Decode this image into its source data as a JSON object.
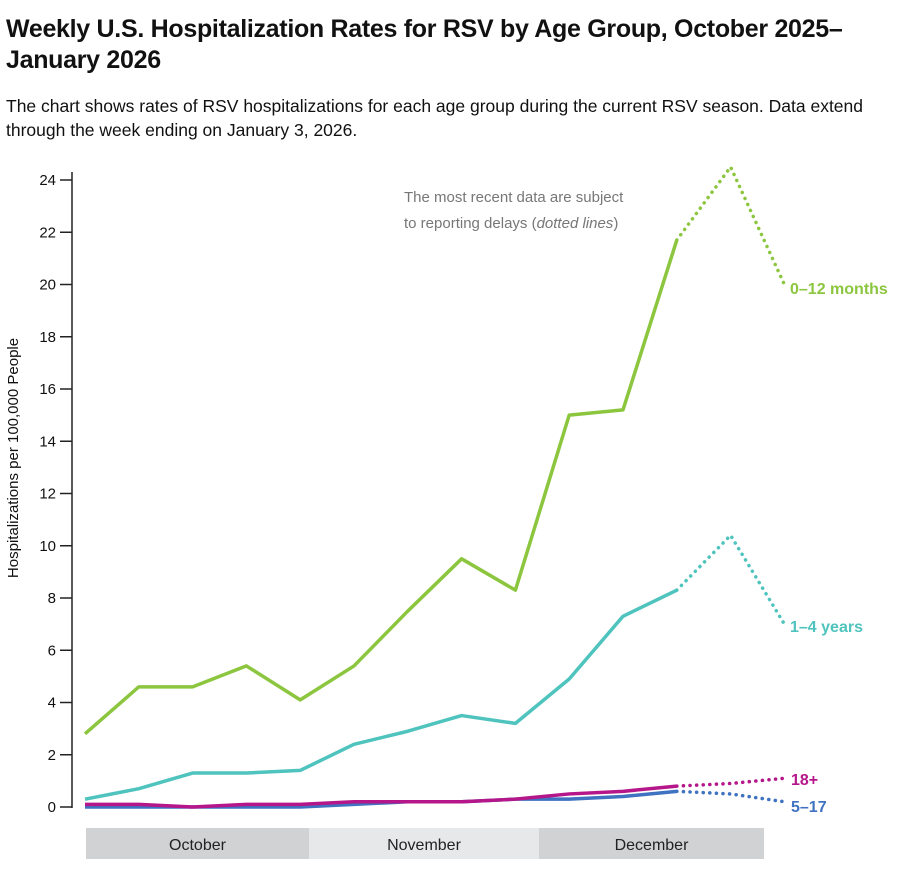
{
  "chart_data": {
    "type": "line",
    "title": "Weekly U.S. Hospitalization Rates for RSV by Age Group, October 2025–January 2026",
    "subtitle": "The chart shows rates of RSV hospitalizations for each age group during the current RSV season. Data extend through the week ending on January 3, 2026.",
    "ylabel": "Hospitalizations per 100,000 People",
    "xlabel": "",
    "ylim": [
      0,
      24
    ],
    "yticks": [
      "0",
      "2",
      "4",
      "6",
      "8",
      "10",
      "12",
      "14",
      "16",
      "18",
      "20",
      "22",
      "24"
    ],
    "month_labels": [
      "October",
      "November",
      "December"
    ],
    "annotation": {
      "text": "The most recent data are subject",
      "text2": "to reporting delays (",
      "italic": "dotted lines",
      "close": ")"
    },
    "provisional_from_week": 12,
    "weeks": [
      1,
      2,
      3,
      4,
      5,
      6,
      7,
      8,
      9,
      10,
      11,
      12,
      13,
      14
    ],
    "grid": false,
    "series": [
      {
        "name": "0–12 months",
        "color": "#8cc63f",
        "values": [
          2.8,
          4.6,
          4.6,
          5.4,
          4.1,
          5.4,
          7.5,
          9.5,
          8.3,
          15.0,
          15.2,
          21.7,
          24.5,
          20.0
        ]
      },
      {
        "name": "1–4 years",
        "color": "#4fc3bd",
        "values": [
          0.3,
          0.7,
          1.3,
          1.3,
          1.4,
          2.4,
          2.9,
          3.5,
          3.2,
          4.9,
          7.3,
          8.3,
          10.4,
          7.0
        ]
      },
      {
        "name": "18+",
        "color": "#b5178a",
        "values": [
          0.1,
          0.1,
          0.0,
          0.1,
          0.1,
          0.2,
          0.2,
          0.2,
          0.3,
          0.5,
          0.6,
          0.8,
          0.9,
          1.1
        ]
      },
      {
        "name": "5–17",
        "color": "#3f72c0",
        "values": [
          0.0,
          0.0,
          0.0,
          0.0,
          0.0,
          0.1,
          0.2,
          0.2,
          0.3,
          0.3,
          0.4,
          0.6,
          0.5,
          0.2
        ]
      }
    ]
  }
}
